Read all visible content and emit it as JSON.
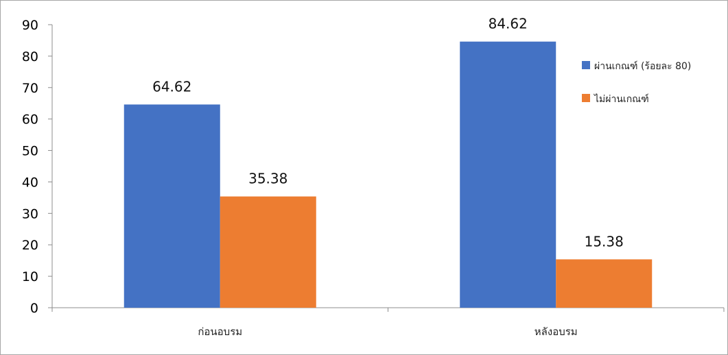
{
  "chart_data": {
    "type": "bar",
    "categories": [
      "ก่อนอบรม",
      "หลังอบรม"
    ],
    "series": [
      {
        "name": "ผ่านเกณฑ์ (ร้อยละ 80)",
        "values": [
          64.62,
          84.62
        ],
        "color": "#4472C4"
      },
      {
        "name": "ไม่ผ่านเกณฑ์",
        "values": [
          35.38,
          15.38
        ],
        "color": "#ED7D31"
      }
    ],
    "data_labels": [
      [
        "64.62",
        "84.62"
      ],
      [
        "35.38",
        "15.38"
      ]
    ],
    "ylim": [
      0,
      90
    ],
    "yticks": [
      "0",
      "10",
      "20",
      "30",
      "40",
      "50",
      "60",
      "70",
      "80",
      "90"
    ],
    "grid": false,
    "legend_position": "right"
  }
}
